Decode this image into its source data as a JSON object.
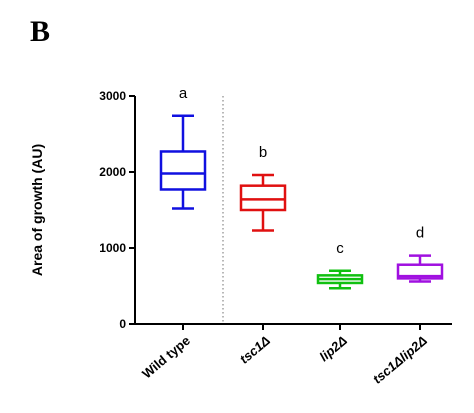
{
  "panel_label": "B",
  "chart_data": {
    "type": "boxplot",
    "ylabel": "Area of growth (AU)",
    "ylim": [
      0,
      3000
    ],
    "yticks": [
      0,
      1000,
      2000,
      3000
    ],
    "ytick_labels": [
      "0",
      "1000",
      "2000",
      "3000"
    ],
    "categories": [
      "Wild type",
      "tsc1Δ",
      "lip2Δ",
      "tsc1Δlip2Δ"
    ],
    "italic_categories": [
      false,
      true,
      true,
      true
    ],
    "colors": [
      "#1010e0",
      "#e01010",
      "#10c010",
      "#a010e0"
    ],
    "boxes": [
      {
        "min": 1520,
        "q1": 1770,
        "median": 1980,
        "q3": 2270,
        "max": 2740
      },
      {
        "min": 1230,
        "q1": 1500,
        "median": 1640,
        "q3": 1820,
        "max": 1960
      },
      {
        "min": 470,
        "q1": 540,
        "median": 590,
        "q3": 640,
        "max": 700
      },
      {
        "min": 560,
        "q1": 600,
        "median": 630,
        "q3": 780,
        "max": 900
      }
    ],
    "significance": [
      "a",
      "b",
      "c",
      "d"
    ],
    "separator_after_category": 0
  }
}
